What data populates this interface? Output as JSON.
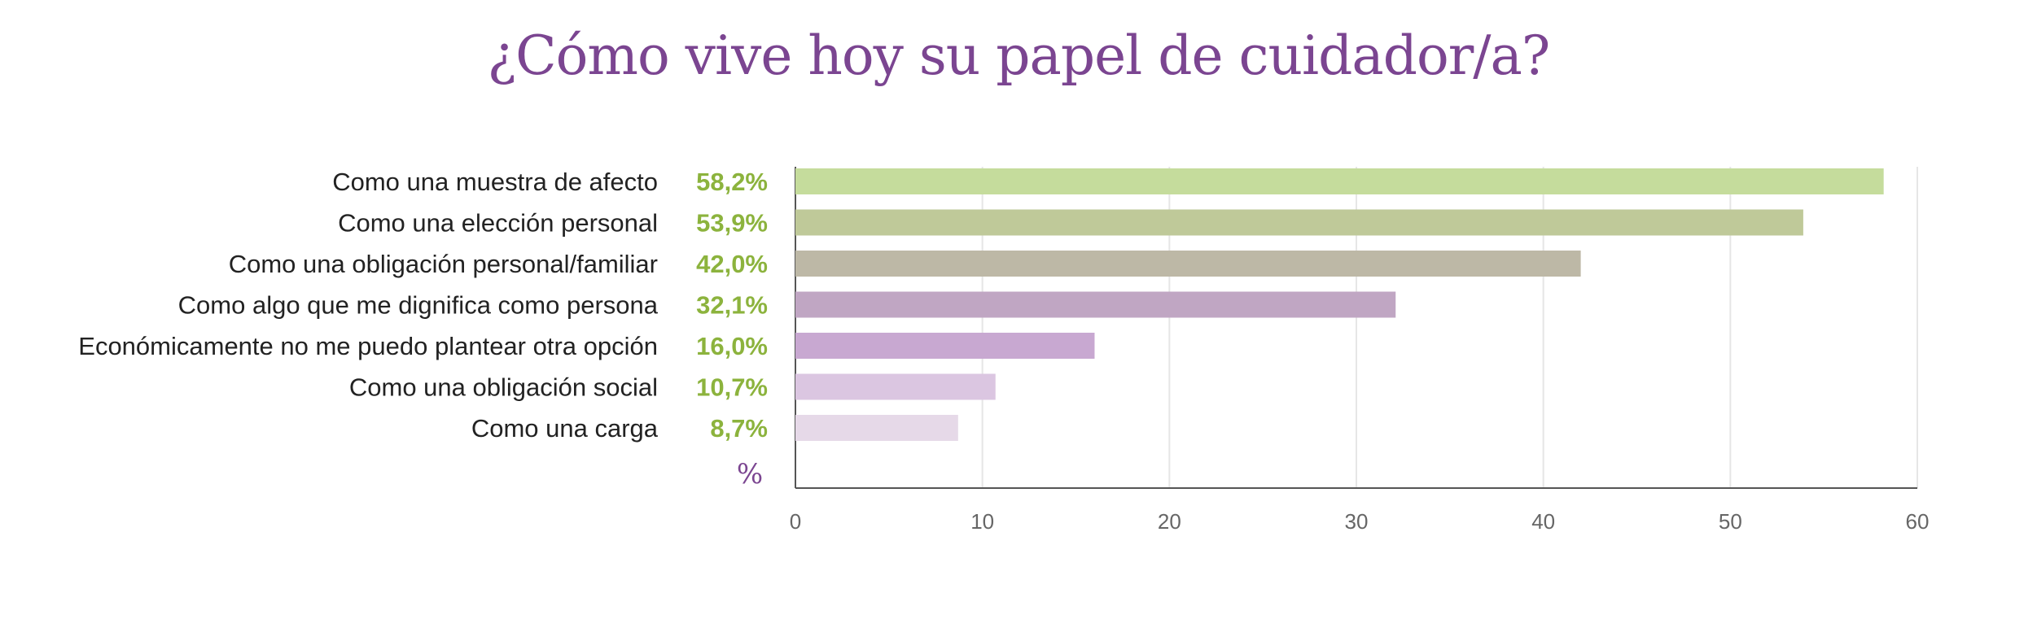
{
  "chart_data": {
    "type": "bar",
    "orientation": "horizontal",
    "title": "¿Cómo vive hoy su papel de cuidador/a?",
    "unit_label": "%",
    "categories": [
      "Como una muestra de afecto",
      "Como una elección personal",
      "Como una obligación personal/familiar",
      "Como algo que me dignifica como persona",
      "Económicamente no me puedo plantear otra opción",
      "Como una obligación social",
      "Como una carga"
    ],
    "values": [
      58.2,
      53.9,
      42.0,
      32.1,
      16.0,
      10.7,
      8.7
    ],
    "value_labels": [
      "58,2%",
      "53,9%",
      "42,0%",
      "32,1%",
      "16,0%",
      "10,7%",
      "8,7%"
    ],
    "bar_colors": [
      "#c5dc9c",
      "#bfc999",
      "#bdb8a6",
      "#c0a6c3",
      "#c8a8d1",
      "#dbc6e1",
      "#e6d9e8"
    ],
    "xlim": [
      0,
      60
    ],
    "xticks": [
      0,
      10,
      20,
      30,
      40,
      50,
      60
    ],
    "xtick_labels": [
      "0",
      "10",
      "20",
      "30",
      "40",
      "50",
      "60"
    ],
    "grid": true
  }
}
